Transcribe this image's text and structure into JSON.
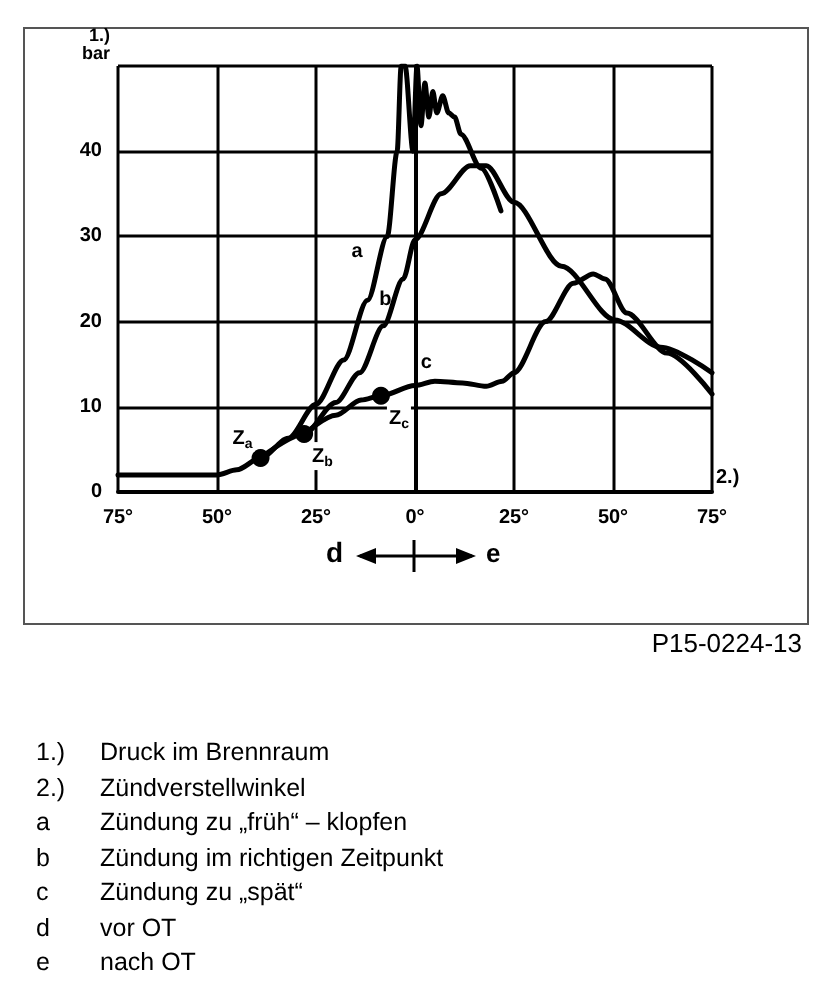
{
  "chart_data": {
    "type": "line",
    "ylabel": "1.)\nbar",
    "xlabel": "2.)",
    "xlim": [
      -75,
      75
    ],
    "xticks": [
      {
        "value": -75,
        "label": "75°"
      },
      {
        "value": -50,
        "label": "50°"
      },
      {
        "value": -25,
        "label": "25°"
      },
      {
        "value": 0,
        "label": "0°"
      },
      {
        "value": 25,
        "label": "25°"
      },
      {
        "value": 50,
        "label": "50°"
      },
      {
        "value": 75,
        "label": "75°"
      }
    ],
    "ylim": [
      0,
      50
    ],
    "yticks": [
      0,
      10,
      20,
      30,
      40,
      {
        "value": 50,
        "label": null
      }
    ],
    "grid": true,
    "line_style": "solid",
    "marker": "none",
    "series": [
      {
        "color": "#000000",
        "x": [
          -75,
          -50,
          -45,
          -39,
          -32,
          -25,
          -18,
          -12,
          -7,
          -4.5,
          -3.5,
          -2.5,
          -0.5,
          0.5,
          1.5,
          2.5,
          3.5,
          4.5,
          5.5,
          7,
          8.5,
          10,
          11.6,
          16.7,
          21.7
        ],
        "values": [
          2,
          2,
          2.6,
          4,
          6.3,
          10.3,
          15.5,
          22.5,
          30,
          40,
          50,
          50,
          40,
          50,
          43,
          48,
          44,
          47,
          44.5,
          46.5,
          44.5,
          44,
          42,
          38,
          33
        ]
      },
      {
        "color": "#000000",
        "x": [
          -39,
          -28,
          -20,
          -14,
          -8,
          -3,
          0,
          6.6,
          14,
          18,
          25,
          37,
          50.5,
          62,
          75
        ],
        "values": [
          4,
          6.8,
          10.5,
          14,
          19.5,
          25,
          29.6,
          35,
          38.3,
          38.3,
          34,
          26.5,
          20.2,
          17,
          14
        ]
      },
      {
        "color": "#000000",
        "x": [
          -28,
          -20,
          -13.6,
          -8.6,
          0,
          5,
          12,
          18,
          22,
          25,
          33,
          40,
          45,
          48,
          53.5,
          63.6,
          75
        ],
        "values": [
          6.8,
          9,
          10.8,
          11.3,
          12.5,
          13,
          12.8,
          12.4,
          13,
          14,
          20,
          24.5,
          25.6,
          25,
          21,
          16.3,
          11.5
        ]
      },
      {
        "type": "scatter",
        "marker": "circle",
        "color": "#000000",
        "x": [
          -39,
          -28,
          -8.6
        ],
        "values": [
          4,
          6.8,
          11.3
        ]
      }
    ],
    "annotations": [
      {
        "text": "a",
        "x": -12,
        "y": 27
      },
      {
        "text": "b",
        "x": -5,
        "y": 21.4
      },
      {
        "text": "c",
        "x": 5.5,
        "y": 14
      },
      {
        "text": "Z$_{a}$",
        "x": -39,
        "y": 4
      },
      {
        "text": "Z$_{b}$",
        "x": -28,
        "y": 6.8
      },
      {
        "text": "Z$_{c}$",
        "x": -8.6,
        "y": 11.3
      },
      "d",
      "e",
      "P15-0224-13",
      "1.) Druck im Brennraum",
      "2.) Zündverstellwinkel",
      "a Zündung zu „früh“ – klopfen",
      "b Zündung im richtigen Zeitpunkt",
      "c Zündung zu „spät“",
      "d vor OT",
      "e nach OT"
    ]
  }
}
